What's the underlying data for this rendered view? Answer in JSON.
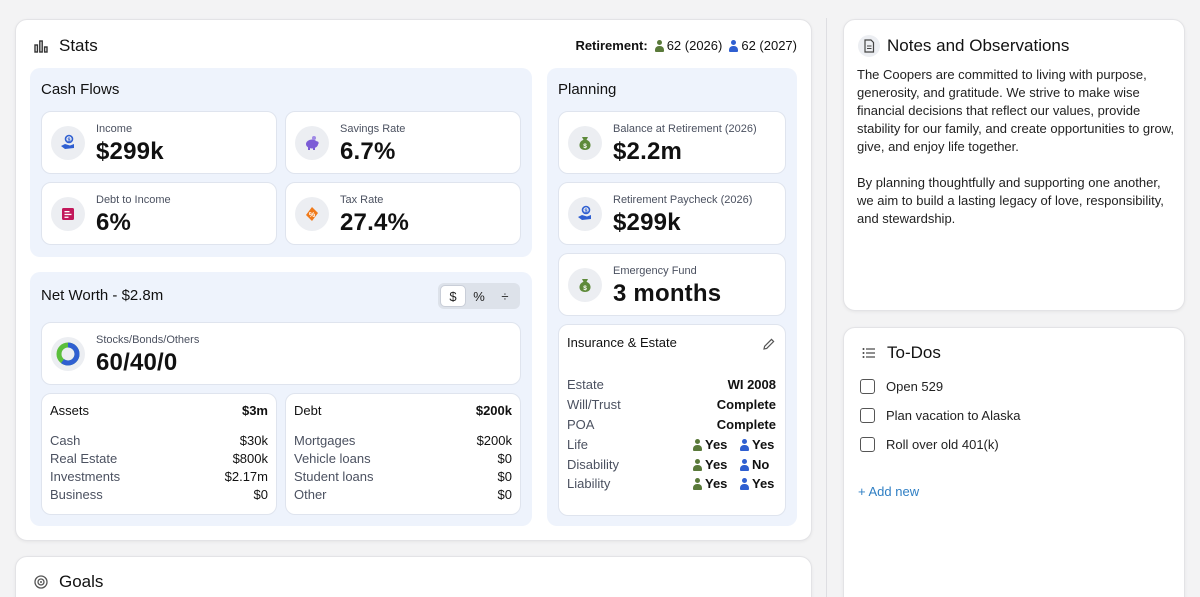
{
  "stats": {
    "title": "Stats",
    "retirement_label": "Retirement:",
    "person1_retirement": "62 (2026)",
    "person2_retirement": "62 (2027)"
  },
  "cash_flows": {
    "title": "Cash Flows",
    "income": {
      "label": "Income",
      "value": "$299k"
    },
    "savings_rate": {
      "label": "Savings Rate",
      "value": "6.7%"
    },
    "debt_to_income": {
      "label": "Debt to Income",
      "value": "6%"
    },
    "tax_rate": {
      "label": "Tax Rate",
      "value": "27.4%"
    }
  },
  "planning": {
    "title": "Planning",
    "balance_at_retirement": {
      "label": "Balance at Retirement (2026)",
      "value": "$2.2m"
    },
    "retirement_paycheck": {
      "label": "Retirement Paycheck (2026)",
      "value": "$299k"
    },
    "emergency_fund": {
      "label": "Emergency Fund",
      "value": "3 months"
    }
  },
  "insurance": {
    "title": "Insurance & Estate",
    "rows": [
      {
        "key": "Estate",
        "value": "WI 2008"
      },
      {
        "key": "Will/Trust",
        "value": "Complete"
      },
      {
        "key": "POA",
        "value": "Complete"
      },
      {
        "key": "Life",
        "p1": "Yes",
        "p2": "Yes"
      },
      {
        "key": "Disability",
        "p1": "Yes",
        "p2": "No"
      },
      {
        "key": "Liability",
        "p1": "Yes",
        "p2": "Yes"
      }
    ]
  },
  "net_worth": {
    "title": "Net Worth - $2.8m",
    "toggle": [
      "$",
      "%",
      "÷"
    ],
    "allocation": {
      "label": "Stocks/Bonds/Others",
      "value": "60/40/0",
      "stocks_pct": 60,
      "bonds_pct": 40,
      "others_pct": 0
    },
    "assets": {
      "title": "Assets",
      "total": "$3m",
      "rows": [
        {
          "key": "Cash",
          "value": "$30k"
        },
        {
          "key": "Real Estate",
          "value": "$800k"
        },
        {
          "key": "Investments",
          "value": "$2.17m"
        },
        {
          "key": "Business",
          "value": "$0"
        }
      ]
    },
    "debt": {
      "title": "Debt",
      "total": "$200k",
      "rows": [
        {
          "key": "Mortgages",
          "value": "$200k"
        },
        {
          "key": "Vehicle loans",
          "value": "$0"
        },
        {
          "key": "Student loans",
          "value": "$0"
        },
        {
          "key": "Other",
          "value": "$0"
        }
      ]
    }
  },
  "goals": {
    "title": "Goals"
  },
  "notes": {
    "title": "Notes and Observations",
    "paragraphs": [
      "The Coopers are committed to living with purpose, generosity, and gratitude. We strive to make wise financial decisions that reflect our values, provide stability for our family, and create opportunities to grow, give, and enjoy life together.",
      "By planning thoughtfully and supporting one another, we aim to build a lasting legacy of love, responsibility, and stewardship."
    ]
  },
  "todos": {
    "title": "To-Dos",
    "items": [
      "Open 529",
      "Plan vacation to Alaska",
      "Roll over old 401(k)"
    ],
    "add_label": "+ Add new"
  },
  "colors": {
    "person1": "#5a7a3a",
    "person2": "#2f5fd1",
    "panel_bg": "#eef3fc",
    "link": "#2f7fc4",
    "donut_stocks": "#2f5fd1",
    "donut_bonds": "#5bbf3c"
  },
  "icons": {
    "stats": "bar-chart-icon",
    "income": "hand-coin-icon",
    "savings": "piggy-bank-icon",
    "debt": "bill-icon",
    "tax": "tax-tag-icon",
    "money_bag": "money-bag-icon",
    "edit": "pencil-icon",
    "notes": "document-icon",
    "todos": "list-icon",
    "goals": "target-icon"
  }
}
